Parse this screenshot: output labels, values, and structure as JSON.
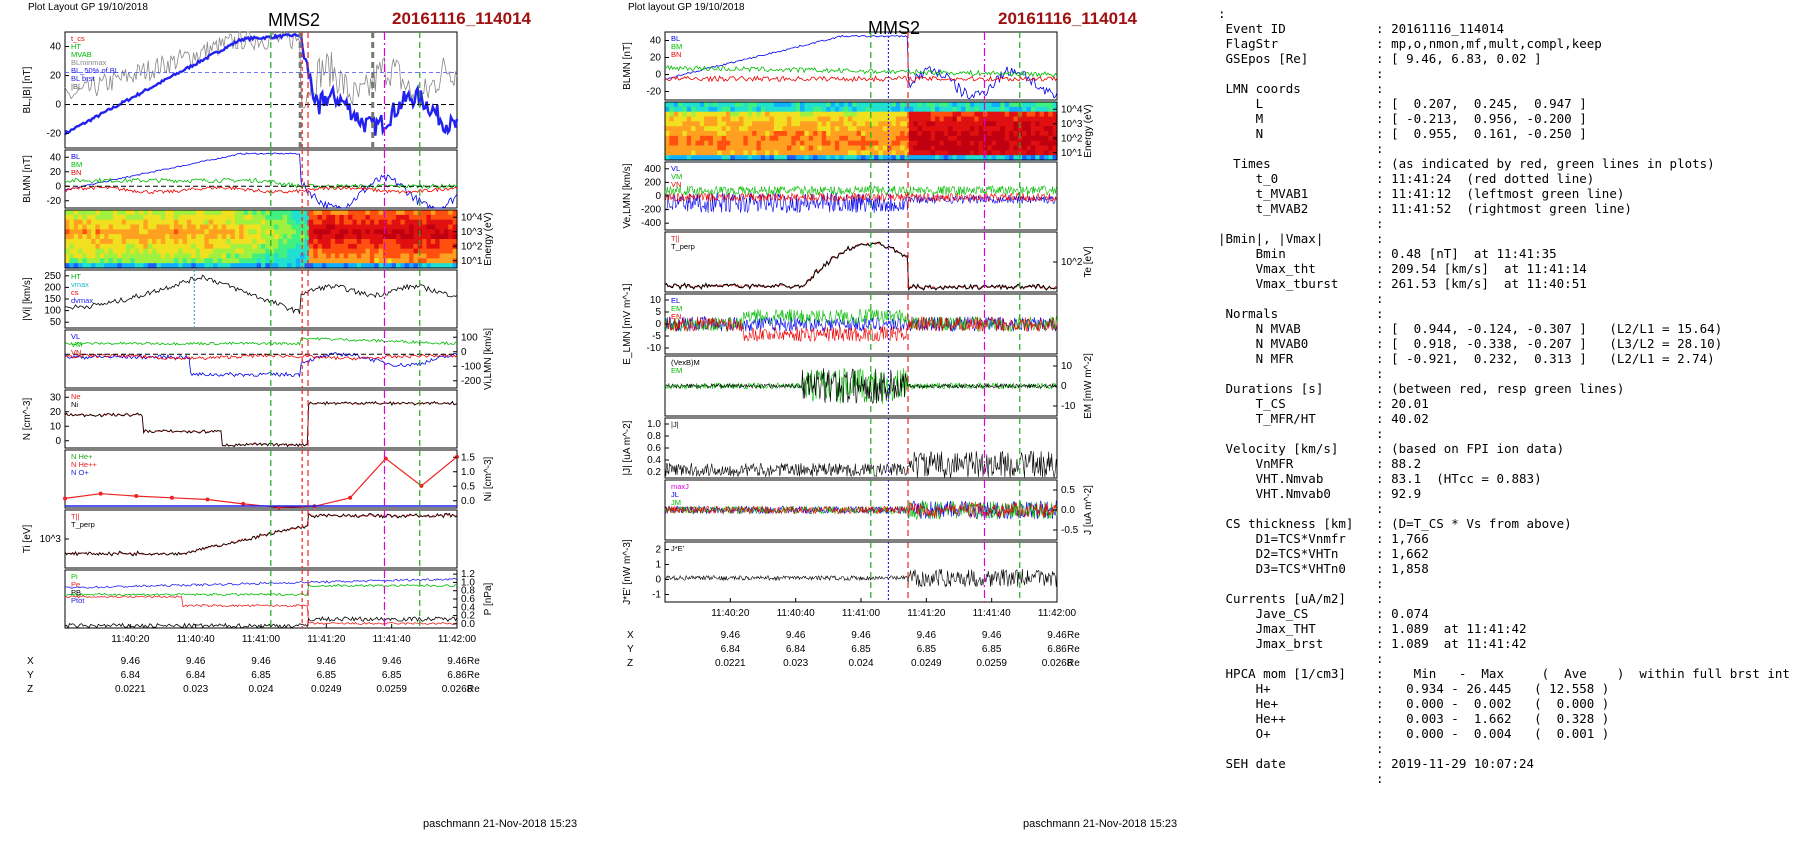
{
  "panelA": {
    "header": "Plot Layout GP 19/10/2018",
    "title": "MMS2",
    "event": "20161116_114014",
    "footer": "paschmann 21-Nov-2018 15:23"
  },
  "panelB": {
    "header": "Plot layout GP 19/10/2018",
    "title": "MMS2",
    "event": "20161116_114014",
    "footer": "paschmann 21-Nov-2018 15:23"
  },
  "time_ticks": [
    "11:40:20",
    "11:40:40",
    "11:41:00",
    "11:41:20",
    "11:41:40",
    "11:42:00"
  ],
  "ephem": {
    "rows": [
      {
        "name": "X",
        "values": [
          "9.46",
          "9.46",
          "9.46",
          "9.46",
          "9.46",
          "9.46"
        ],
        "unit": "Re"
      },
      {
        "name": "Y",
        "values": [
          "6.84",
          "6.84",
          "6.85",
          "6.85",
          "6.85",
          "6.86"
        ],
        "unit": "Re"
      },
      {
        "name": "Z",
        "values": [
          "0.0221",
          "0.023",
          "0.024",
          "0.0249",
          "0.0259",
          "0.0268"
        ],
        "unit": "Re"
      }
    ]
  },
  "colors": {
    "event": "#a01010",
    "L": "#0000ee",
    "M": "#00bb00",
    "N": "#ee0000",
    "black": "#000000",
    "magenta": "#dd00dd",
    "green": "#22aa22",
    "red": "#ee2222",
    "blue": "#2222ee",
    "gray": "#888888"
  },
  "chart_data": [
    {
      "type": "line",
      "name": "left",
      "panels": [
        {
          "id": "BL",
          "ylabel": "BL,|B| [nT]",
          "yticks": [
            "40",
            "20",
            "0",
            "-20"
          ],
          "ylim": [
            -30,
            50
          ],
          "legend": [
            "t_cs",
            "HT",
            "MVAB",
            "BLminmax",
            "BL_50% of BL",
            "BL brst",
            "|B|"
          ],
          "legend_colors": [
            "#ee0000",
            "#00bb00",
            "#00bb00",
            "#888888",
            "#2222ee",
            "#2222ee",
            "#555555"
          ]
        },
        {
          "id": "BLMN",
          "ylabel": "BLMN [nT]",
          "yticks": [
            "40",
            "20",
            "0",
            "-20"
          ],
          "ylim": [
            -30,
            50
          ],
          "legend": [
            "BL",
            "BM",
            "BN"
          ]
        },
        {
          "id": "spec",
          "ylabel": "Energy (eV)",
          "yticks": [
            "10^4",
            "10^3",
            "10^2",
            "10^1"
          ]
        },
        {
          "id": "Vi",
          "ylabel": "|Vi| [km/s]",
          "yticks": [
            "250",
            "200",
            "150",
            "100",
            "50"
          ],
          "legend": [
            "HT",
            "vmax",
            "cs",
            "dvmax"
          ]
        },
        {
          "id": "ViLMN",
          "ylabel": "Vi,LMN [km/s]",
          "yticks": [
            "100",
            "0",
            "-100",
            "-200"
          ],
          "legend": [
            "VL",
            "VM",
            "VN"
          ]
        },
        {
          "id": "N",
          "ylabel": "N [cm^-3]",
          "yticks": [
            "30",
            "20",
            "10",
            "0"
          ],
          "legend": [
            "Ne",
            "Ni"
          ]
        },
        {
          "id": "Ni",
          "ylabel": "Ni [cm^-3]",
          "yticks": [
            "1.5",
            "1.0",
            "0.5",
            "0.0"
          ],
          "legend": [
            "N He+",
            "N He++",
            "N O+"
          ],
          "He2_points": [
            0.28,
            0.42,
            0.35,
            0.3,
            0.25,
            0.12,
            0.02,
            0.05,
            0.3,
            1.45,
            0.65,
            1.5
          ]
        },
        {
          "id": "Ti",
          "ylabel": "Ti [eV]",
          "yticks": [
            "10^3"
          ],
          "legend": [
            "T||",
            "T_perp"
          ]
        },
        {
          "id": "P",
          "ylabel": "P [nPa]",
          "yticks": [
            "1.2",
            "1.0",
            "0.8",
            "0.6",
            "0.4",
            "0.2",
            "0.0"
          ],
          "legend": [
            "Pi",
            "Pe",
            "PB",
            "Ptot"
          ]
        }
      ]
    },
    {
      "type": "line",
      "name": "middle",
      "panels": [
        {
          "id": "BLMN",
          "ylabel": "BLMN [nT]",
          "yticks": [
            "40",
            "20",
            "0",
            "-20"
          ],
          "legend": [
            "BL",
            "BM",
            "BN"
          ]
        },
        {
          "id": "spec",
          "ylabel": "Energy (eV)",
          "yticks": [
            "10^4",
            "10^3",
            "10^2",
            "10^1"
          ]
        },
        {
          "id": "Ve",
          "ylabel": "Ve,LMN [km/s]",
          "yticks": [
            "400",
            "200",
            "0",
            "-200",
            "-400"
          ],
          "legend": [
            "VL",
            "VM",
            "VN"
          ]
        },
        {
          "id": "Te",
          "ylabel": "Te [eV]",
          "yticks": [
            "10^2"
          ],
          "legend": [
            "T||",
            "T_perp"
          ]
        },
        {
          "id": "E",
          "ylabel": "E_LMN [mV m^-1]",
          "yticks": [
            "10",
            "5",
            "0",
            "-5",
            "-10"
          ],
          "legend": [
            "EL",
            "EM",
            "EN"
          ]
        },
        {
          "id": "EM",
          "ylabel": "EM [mW m^-2]",
          "yticks": [
            "10",
            "0",
            "-10"
          ],
          "legend": [
            "(VexB)M",
            "EM"
          ]
        },
        {
          "id": "J",
          "ylabel": "|J| [uA m^-2]",
          "yticks": [
            "1.0",
            "0.8",
            "0.6",
            "0.4",
            "0.2"
          ],
          "legend": [
            "|J|"
          ]
        },
        {
          "id": "JLMN",
          "ylabel": "J [uA m^-2]",
          "yticks": [
            "0.5",
            "0.0",
            "-0.5"
          ],
          "legend": [
            "maxJ",
            "JL",
            "JM",
            "JN"
          ]
        },
        {
          "id": "JE",
          "ylabel": "J*E' [nW m^-3]",
          "yticks": [
            "2",
            "1",
            "0",
            "-1"
          ],
          "legend": [
            "J*E'"
          ]
        }
      ]
    }
  ],
  "info_lines": [
    ":",
    " Event ID            : 20161116_114014",
    " FlagStr             : mp,o,nmon,mf,mult,compl,keep",
    " GSEpos [Re]         : [ 9.46, 6.83, 0.02 ]",
    "                     :",
    " LMN coords          :",
    "     L               : [  0.207,  0.245,  0.947 ]",
    "     M               : [ -0.213,  0.956, -0.200 ]",
    "     N               : [  0.955,  0.161, -0.250 ]",
    "                     :",
    "  Times              : (as indicated by red, green lines in plots)",
    "     t_0             : 11:41:24  (red dotted line)",
    "     t_MVAB1         : 11:41:12  (leftmost green line)",
    "     t_MVAB2         : 11:41:52  (rightmost green line)",
    "                     :",
    "|Bmin|, |Vmax|       :",
    "     Bmin            : 0.48 [nT]  at 11:41:35",
    "     Vmax_tht        : 209.54 [km/s]  at 11:41:14",
    "     Vmax_tburst     : 261.53 [km/s]  at 11:40:51",
    "                     :",
    " Normals             :",
    "     N MVAB          : [  0.944, -0.124, -0.307 ]   (L2/L1 = 15.64)",
    "     N MVAB0         : [  0.918, -0.338, -0.207 ]   (L3/L2 = 28.10)",
    "     N MFR           : [ -0.921,  0.232,  0.313 ]   (L2/L1 = 2.74)",
    "                     :",
    " Durations [s]       : (between red, resp green lines)",
    "     T_CS            : 20.01",
    "     T_MFR/HT        : 40.02",
    "                     :",
    " Velocity [km/s]     : (based on FPI ion data)",
    "     VnMFR           : 88.2",
    "     VHT.Nmvab       : 83.1  (HTcc = 0.883)",
    "     VHT.Nmvab0      : 92.9",
    "                     :",
    " CS thickness [km]   : (D=T_CS * Vs from above)",
    "     D1=TCS*Vnmfr    : 1,766",
    "     D2=TCS*VHTn     : 1,662",
    "     D3=TCS*VHTn0    : 1,858",
    "                     :",
    " Currents [uA/m2]    :",
    "     Jave_CS         : 0.074",
    "     Jmax_THT        : 1.089  at 11:41:42",
    "     Jmax_brst       : 1.089  at 11:41:42",
    "                     :",
    " HPCA mom [1/cm3]    :    Min   -  Max     (  Ave    )  within full brst int",
    "     H+              :   0.934 - 26.445   ( 12.558 )",
    "     He+             :   0.000 -  0.002   (  0.000 )",
    "     He++            :   0.003 -  1.662   (  0.328 )",
    "     O+              :   0.000 -  0.004   (  0.001 )",
    "                     :",
    " SEH date            : 2019-11-29 10:07:24",
    "                     :"
  ]
}
